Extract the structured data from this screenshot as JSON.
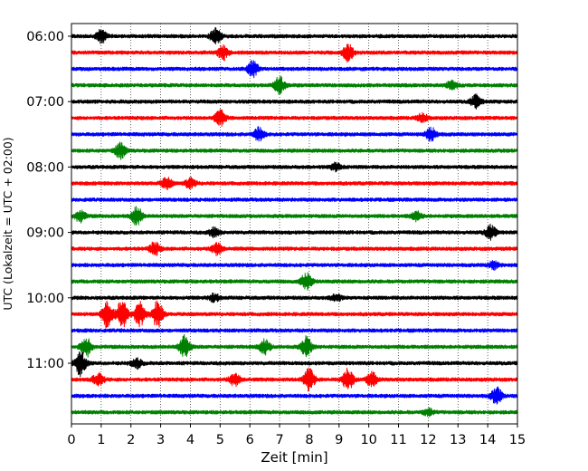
{
  "chart_data": {
    "type": "line",
    "title": "",
    "xlabel": "Zeit  [min]",
    "ylabel": "UTC (Lokalzeit = UTC + 02:00)",
    "xlim": [
      0,
      15
    ],
    "x_ticks": [
      "0",
      "1",
      "2",
      "3",
      "4",
      "5",
      "6",
      "7",
      "8",
      "9",
      "10",
      "11",
      "12",
      "13",
      "14",
      "15"
    ],
    "y_ticks": [
      "06:00",
      "07:00",
      "08:00",
      "09:00",
      "10:00",
      "11:00"
    ],
    "grid": "vertical dotted lines at each minute",
    "legend": "none",
    "colors": [
      "#000000",
      "#ff0000",
      "#0000ff",
      "#008000"
    ],
    "trace_interval_minutes": 15,
    "first_trace": "06:00",
    "traces": [
      {
        "start": "06:00",
        "color": "#000000",
        "bursts": [
          {
            "t": 1.0,
            "amp": 0.45
          },
          {
            "t": 4.85,
            "amp": 0.55
          }
        ]
      },
      {
        "start": "06:15",
        "color": "#ff0000",
        "bursts": [
          {
            "t": 5.1,
            "amp": 0.5
          },
          {
            "t": 9.3,
            "amp": 0.6
          }
        ]
      },
      {
        "start": "06:30",
        "color": "#0000ff",
        "bursts": [
          {
            "t": 6.1,
            "amp": 0.55
          }
        ]
      },
      {
        "start": "06:45",
        "color": "#008000",
        "bursts": [
          {
            "t": 7.0,
            "amp": 0.6
          },
          {
            "t": 12.8,
            "amp": 0.3
          }
        ]
      },
      {
        "start": "07:00",
        "color": "#000000",
        "bursts": [
          {
            "t": 13.6,
            "amp": 0.45
          }
        ]
      },
      {
        "start": "07:15",
        "color": "#ff0000",
        "bursts": [
          {
            "t": 5.0,
            "amp": 0.55
          },
          {
            "t": 11.8,
            "amp": 0.3
          }
        ]
      },
      {
        "start": "07:30",
        "color": "#0000ff",
        "bursts": [
          {
            "t": 6.3,
            "amp": 0.45
          },
          {
            "t": 12.1,
            "amp": 0.45
          }
        ]
      },
      {
        "start": "07:45",
        "color": "#008000",
        "bursts": [
          {
            "t": 1.65,
            "amp": 0.55
          }
        ]
      },
      {
        "start": "08:00",
        "color": "#000000",
        "bursts": [
          {
            "t": 8.9,
            "amp": 0.3
          }
        ]
      },
      {
        "start": "08:15",
        "color": "#ff0000",
        "bursts": [
          {
            "t": 3.2,
            "amp": 0.4
          },
          {
            "t": 4.0,
            "amp": 0.35
          }
        ]
      },
      {
        "start": "08:30",
        "color": "#0000ff",
        "bursts": []
      },
      {
        "start": "08:45",
        "color": "#008000",
        "bursts": [
          {
            "t": 0.3,
            "amp": 0.4
          },
          {
            "t": 2.2,
            "amp": 0.65
          },
          {
            "t": 11.6,
            "amp": 0.3
          }
        ]
      },
      {
        "start": "09:00",
        "color": "#000000",
        "bursts": [
          {
            "t": 4.8,
            "amp": 0.3
          },
          {
            "t": 14.1,
            "amp": 0.5
          }
        ]
      },
      {
        "start": "09:15",
        "color": "#ff0000",
        "bursts": [
          {
            "t": 2.8,
            "amp": 0.45
          },
          {
            "t": 4.9,
            "amp": 0.45
          }
        ]
      },
      {
        "start": "09:30",
        "color": "#0000ff",
        "bursts": [
          {
            "t": 14.2,
            "amp": 0.25
          }
        ]
      },
      {
        "start": "09:45",
        "color": "#008000",
        "bursts": [
          {
            "t": 7.9,
            "amp": 0.6
          }
        ]
      },
      {
        "start": "10:00",
        "color": "#000000",
        "bursts": [
          {
            "t": 4.8,
            "amp": 0.25
          },
          {
            "t": 8.9,
            "amp": 0.25
          }
        ]
      },
      {
        "start": "10:15",
        "color": "#ff0000",
        "bursts": [
          {
            "t": 1.2,
            "amp": 0.9
          },
          {
            "t": 1.7,
            "amp": 1.0
          },
          {
            "t": 2.3,
            "amp": 0.9
          },
          {
            "t": 2.9,
            "amp": 0.95
          }
        ]
      },
      {
        "start": "10:30",
        "color": "#0000ff",
        "bursts": []
      },
      {
        "start": "10:45",
        "color": "#008000",
        "bursts": [
          {
            "t": 0.5,
            "amp": 0.7
          },
          {
            "t": 3.8,
            "amp": 0.8
          },
          {
            "t": 6.5,
            "amp": 0.5
          },
          {
            "t": 7.9,
            "amp": 0.7
          }
        ]
      },
      {
        "start": "11:00",
        "color": "#000000",
        "bursts": [
          {
            "t": 0.3,
            "amp": 0.85
          },
          {
            "t": 2.2,
            "amp": 0.35
          }
        ]
      },
      {
        "start": "11:15",
        "color": "#ff0000",
        "bursts": [
          {
            "t": 0.9,
            "amp": 0.45
          },
          {
            "t": 5.5,
            "amp": 0.45
          },
          {
            "t": 8.0,
            "amp": 0.8
          },
          {
            "t": 9.3,
            "amp": 0.8
          },
          {
            "t": 10.1,
            "amp": 0.5
          }
        ]
      },
      {
        "start": "11:30",
        "color": "#0000ff",
        "bursts": [
          {
            "t": 14.3,
            "amp": 0.6
          }
        ]
      },
      {
        "start": "11:45",
        "color": "#008000",
        "bursts": [
          {
            "t": 12.0,
            "amp": 0.25
          }
        ]
      }
    ]
  }
}
